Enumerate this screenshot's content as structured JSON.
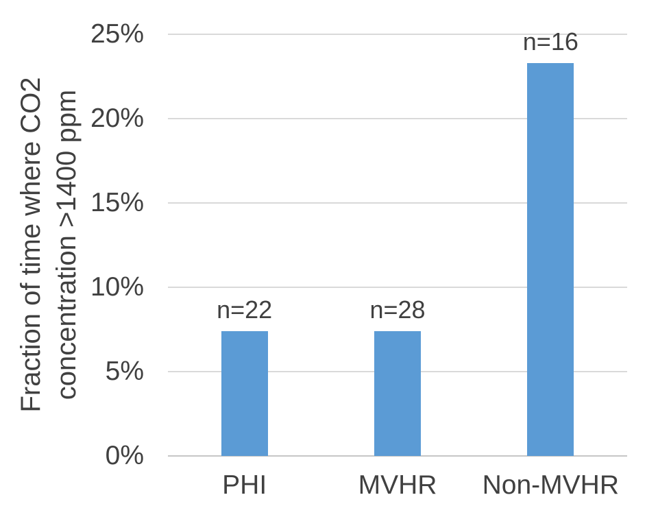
{
  "chart_data": {
    "type": "bar",
    "categories": [
      "PHI",
      "MVHR",
      "Non-MVHR"
    ],
    "values": [
      7.4,
      7.4,
      23.3
    ],
    "bar_labels": [
      "n=22",
      "n=28",
      "n=16"
    ],
    "title": "",
    "xlabel": "",
    "ylabel_line1": "Fraction of time where CO2",
    "ylabel_line2": "concentration >1400 ppm",
    "ylim": [
      0,
      25
    ],
    "yticks": [
      0,
      5,
      10,
      15,
      20,
      25
    ],
    "ytick_labels": [
      "0%",
      "5%",
      "10%",
      "15%",
      "20%",
      "25%"
    ],
    "grid": true,
    "legend": false,
    "bar_color": "#5b9bd5",
    "gridline_color": "#d9d9d9",
    "axis_line_color": "#c6c6c6",
    "text_color": "#404040"
  }
}
